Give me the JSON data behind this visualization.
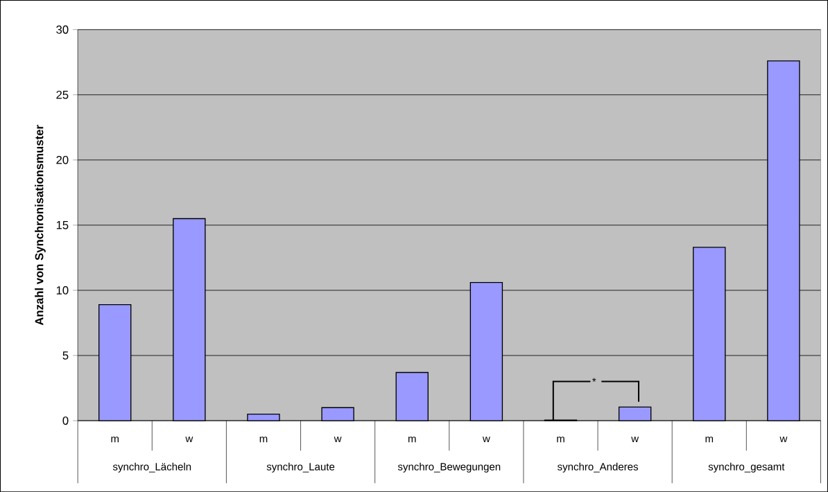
{
  "chart_data": {
    "type": "bar",
    "ylabel": "Anzahl von Synchronisationsmuster",
    "categories": [
      "m",
      "w",
      "m",
      "w",
      "m",
      "w",
      "m",
      "w",
      "m",
      "w"
    ],
    "values": [
      8.9,
      15.5,
      0.5,
      1.0,
      3.7,
      10.6,
      0.05,
      1.05,
      13.3,
      27.6
    ],
    "color": "#9999ff",
    "ylim": [
      0,
      30
    ],
    "yticks": [
      0,
      5,
      10,
      15,
      20,
      25,
      30
    ],
    "grid": "y",
    "annotations": [
      "synchro_Lächeln",
      "synchro_Laute",
      "synchro_Bewegungen",
      "synchro_Anderes",
      "synchro_gesamt",
      {
        "text": "*",
        "y": 3
      }
    ]
  }
}
